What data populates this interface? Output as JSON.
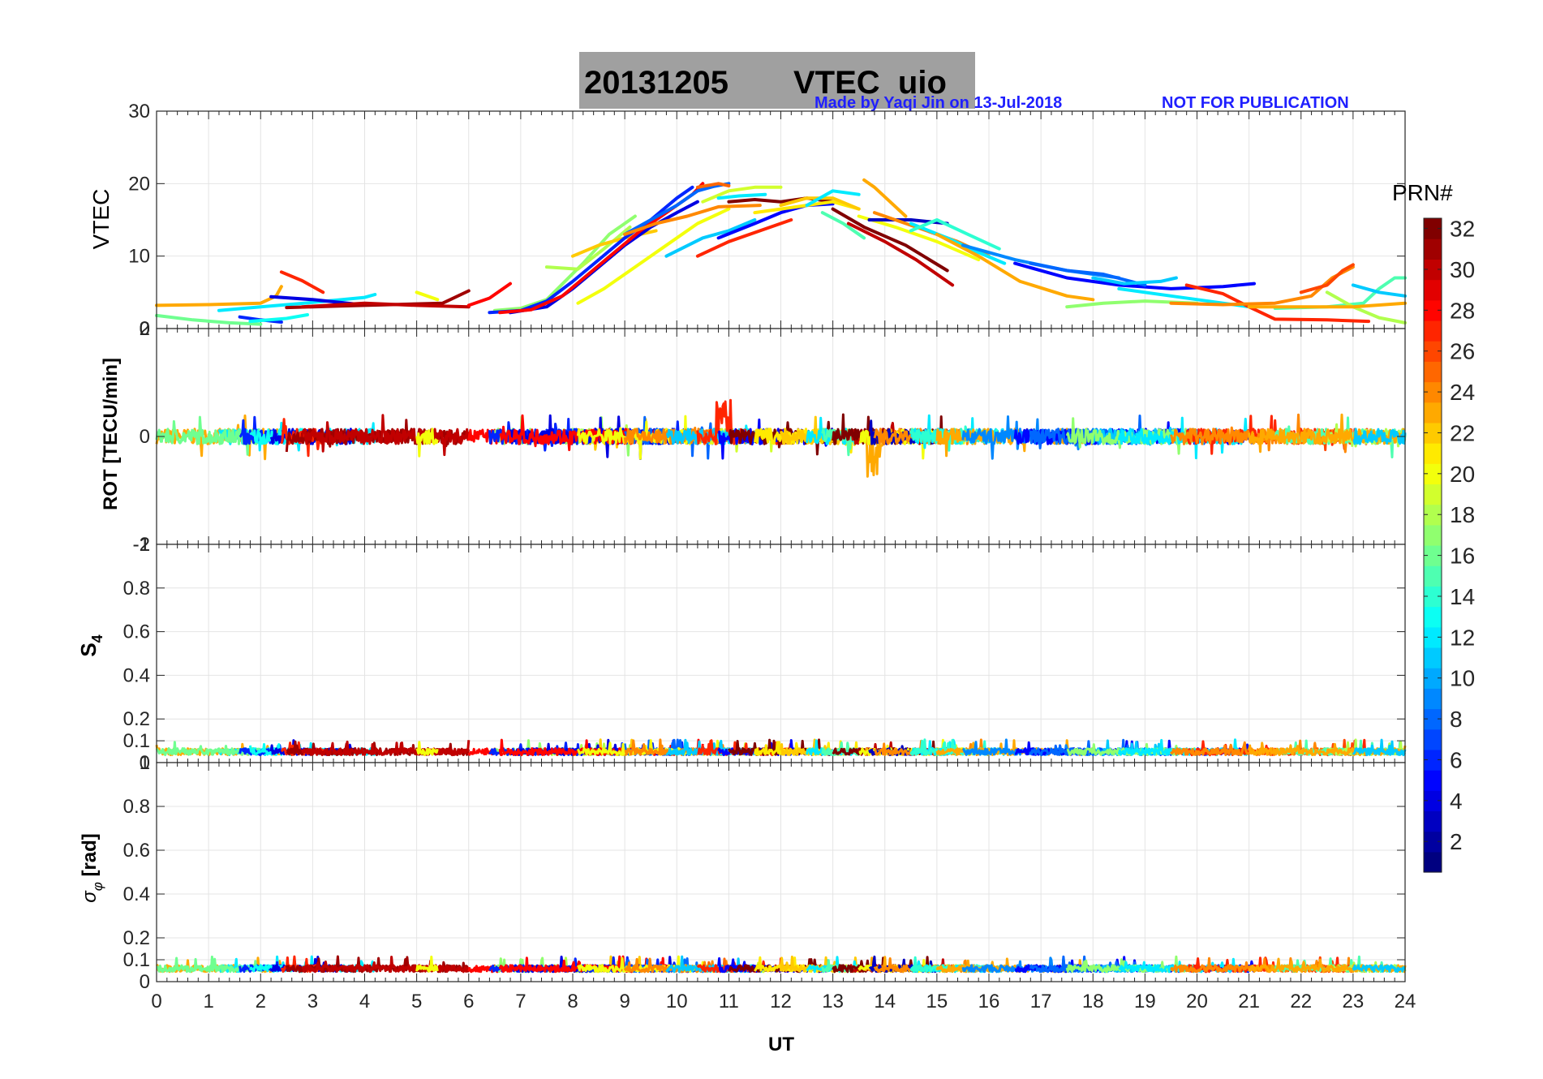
{
  "header": {
    "title_date": "20131205",
    "title_rest": "VTEC  uio",
    "credit": "Made by Yaqi Jin on 13-Jul-2018",
    "notice": "NOT FOR PUBLICATION",
    "credit_color": "#1f1fff",
    "title_bg": "#a0a0a0"
  },
  "chart_data": {
    "type": "line",
    "x_label": "UT",
    "x_range": [
      0,
      24
    ],
    "x_ticks": [
      "0",
      "1",
      "2",
      "3",
      "4",
      "5",
      "6",
      "7",
      "8",
      "9",
      "10",
      "11",
      "12",
      "13",
      "14",
      "15",
      "16",
      "17",
      "18",
      "19",
      "20",
      "21",
      "22",
      "23",
      "24"
    ],
    "panels": [
      {
        "id": "vtec",
        "ylabel": "VTEC",
        "ylim": [
          0,
          30
        ],
        "ytick_values": [
          0,
          10,
          20,
          30
        ],
        "ytick_labels": [
          "0",
          "10",
          "20",
          "30"
        ],
        "description": "Vertical TEC per PRN arc: ~2-7 TECU at night, daytime peak ~20 TECU near 10-11 UT"
      },
      {
        "id": "rot",
        "ylabel": "ROT [TECU/min]",
        "ylim": [
          -2,
          2
        ],
        "ytick_values": [
          -2,
          0,
          2
        ],
        "ytick_labels": [
          "-2",
          "0",
          "2"
        ],
        "bottom_overlap_label": "-1",
        "top_overlap_label": "0",
        "description": "Rate of TEC mostly within +/-0.3, spikes up to ~0.9 near 10.9 UT and ~-0.9 near 13.8 UT"
      },
      {
        "id": "s4",
        "ylabel": "S",
        "ylabel_sub": "4",
        "ylim": [
          0,
          1
        ],
        "ytick_values": [
          0,
          0.1,
          0.2,
          0.4,
          0.6,
          0.8,
          1
        ],
        "ytick_labels": [
          "0",
          "0.1",
          "0.2",
          "0.4",
          "0.6",
          "0.8",
          "1"
        ],
        "description": "Amplitude scintillation index ~0.03-0.08 all day"
      },
      {
        "id": "sigma",
        "ylabel": "σ",
        "ylabel_sub": "φ",
        "ylabel_unit": " [rad]",
        "ylim": [
          0,
          1
        ],
        "ytick_values": [
          0,
          0.1,
          0.2,
          0.4,
          0.6,
          0.8
        ],
        "ytick_labels": [
          "0",
          "0.1",
          "0.2",
          "0.4",
          "0.6",
          "0.8"
        ],
        "top_overlap_label": "1",
        "description": "Phase scintillation ~0.03-0.08 rad all day"
      }
    ],
    "vtec_series": [
      {
        "prn": 23,
        "x": [
          0,
          1,
          2,
          2.3,
          2.4
        ],
        "y": [
          3.2,
          3.3,
          3.5,
          4.5,
          5.8
        ]
      },
      {
        "prn": 12,
        "x": [
          1.2,
          2,
          3,
          4,
          4.2
        ],
        "y": [
          2.5,
          3,
          3.6,
          4.3,
          4.7
        ]
      },
      {
        "prn": 16,
        "x": [
          0,
          0.7,
          1.4,
          2
        ],
        "y": [
          1.8,
          1.2,
          0.8,
          0.6
        ]
      },
      {
        "prn": 6,
        "x": [
          1.6,
          2,
          2.4
        ],
        "y": [
          1.6,
          1.2,
          0.9
        ]
      },
      {
        "prn": 13,
        "x": [
          1.8,
          2.5,
          2.9
        ],
        "y": [
          1.0,
          1.4,
          1.9
        ]
      },
      {
        "prn": 4,
        "x": [
          2.2,
          3,
          3.8
        ],
        "y": [
          4.4,
          4,
          3.4
        ]
      },
      {
        "prn": 27,
        "x": [
          2.4,
          2.8,
          3.2
        ],
        "y": [
          7.8,
          6.6,
          5.0
        ]
      },
      {
        "prn": 31,
        "x": [
          2.5,
          3.5,
          4.5,
          5.5,
          6
        ],
        "y": [
          2.9,
          3.1,
          3.3,
          3.5,
          5.2
        ]
      },
      {
        "prn": 30,
        "x": [
          2.8,
          4,
          5,
          6
        ],
        "y": [
          3,
          3.5,
          3.2,
          3
        ]
      },
      {
        "prn": 20,
        "x": [
          5,
          5.4
        ],
        "y": [
          5,
          4
        ]
      },
      {
        "prn": 28,
        "x": [
          6,
          6.4,
          6.8
        ],
        "y": [
          3.2,
          4.2,
          6.2
        ]
      },
      {
        "prn": 17,
        "x": [
          6.5,
          7,
          7.5,
          8.2,
          8.7,
          9.2
        ],
        "y": [
          2.5,
          2.8,
          4,
          9,
          13,
          15.5
        ]
      },
      {
        "prn": 18,
        "x": [
          7.5,
          8.1,
          8.6,
          9.1
        ],
        "y": [
          8.5,
          8.2,
          11,
          14
        ]
      },
      {
        "prn": 22,
        "x": [
          8,
          8.5,
          9,
          9.6
        ],
        "y": [
          10,
          11.5,
          12.5,
          13.5
        ]
      },
      {
        "prn": 6,
        "x": [
          6.4,
          7,
          7.5,
          8,
          8.5,
          9,
          9.5,
          10,
          10.3
        ],
        "y": [
          2.2,
          2.5,
          3.8,
          6.5,
          9.5,
          12.5,
          15,
          18,
          19.5
        ]
      },
      {
        "prn": 4,
        "x": [
          6.8,
          7.5,
          8,
          8.5,
          9,
          9.5,
          10,
          10.4
        ],
        "y": [
          2.2,
          3,
          5.5,
          8.5,
          11.5,
          14,
          16,
          17.5
        ]
      },
      {
        "prn": 28,
        "x": [
          6.6,
          7.2,
          7.8,
          8.3,
          8.8,
          9.3,
          9.8,
          10.3,
          10.5
        ],
        "y": [
          2.2,
          2.6,
          4.5,
          7.5,
          10.5,
          13.5,
          16,
          18.5,
          20
        ]
      },
      {
        "prn": 8,
        "x": [
          9,
          9.5,
          10,
          10.4,
          10.7,
          11
        ],
        "y": [
          13,
          15,
          17,
          19,
          19.6,
          20
        ]
      },
      {
        "prn": 20,
        "x": [
          8.1,
          8.6,
          9.2,
          9.8,
          10.4,
          11
        ],
        "y": [
          3.5,
          5.5,
          8.5,
          11.5,
          14.5,
          16.5
        ]
      },
      {
        "prn": 24,
        "x": [
          9,
          9.6,
          10.2,
          10.8,
          11.6
        ],
        "y": [
          13,
          14.5,
          15.5,
          16.8,
          17
        ]
      },
      {
        "prn": 19,
        "x": [
          10.5,
          11,
          11.5,
          12
        ],
        "y": [
          17.5,
          19,
          19.5,
          19.5
        ]
      },
      {
        "prn": 25,
        "x": [
          10.4,
          10.8,
          11
        ],
        "y": [
          19.5,
          20,
          19.7
        ]
      },
      {
        "prn": 12,
        "x": [
          10.8,
          11.2,
          11.7
        ],
        "y": [
          18,
          18.3,
          18.5
        ]
      },
      {
        "prn": 11,
        "x": [
          9.8,
          10.5,
          11,
          11.5
        ],
        "y": [
          10,
          12.5,
          13.5,
          15
        ]
      },
      {
        "prn": 27,
        "x": [
          10.4,
          11,
          11.6,
          12.2
        ],
        "y": [
          10,
          12,
          13.5,
          15
        ]
      },
      {
        "prn": 5,
        "x": [
          10.8,
          11.5,
          12,
          12.5,
          13
        ],
        "y": [
          12.5,
          14.5,
          16,
          17,
          17.2
        ]
      },
      {
        "prn": 32,
        "x": [
          11,
          11.5,
          12,
          12.5,
          13
        ],
        "y": [
          17.5,
          17.8,
          17.5,
          18,
          17.5
        ]
      },
      {
        "prn": 21,
        "x": [
          11.5,
          12,
          12.5,
          13,
          13.5
        ],
        "y": [
          16,
          16.5,
          17,
          17.5,
          16.5
        ]
      },
      {
        "prn": 22,
        "x": [
          12,
          12.5,
          13,
          13.5
        ],
        "y": [
          17,
          18,
          18,
          16.5
        ]
      },
      {
        "prn": 12,
        "x": [
          12.5,
          13,
          13.5
        ],
        "y": [
          17,
          19,
          18.5
        ]
      },
      {
        "prn": 15,
        "x": [
          12.8,
          13.2,
          13.6
        ],
        "y": [
          16,
          14.5,
          12.5
        ]
      },
      {
        "prn": 30,
        "x": [
          13.3,
          14,
          14.6,
          15.3
        ],
        "y": [
          14.5,
          12,
          9.5,
          6
        ]
      },
      {
        "prn": 32,
        "x": [
          13,
          13.6,
          14.4,
          15.2
        ],
        "y": [
          16.5,
          14,
          11.5,
          8
        ]
      },
      {
        "prn": 23,
        "x": [
          13.6,
          13.8,
          14.1,
          14.4
        ],
        "y": [
          20.5,
          19.5,
          17.5,
          15.5
        ]
      },
      {
        "prn": 20,
        "x": [
          13.5,
          14.2,
          15,
          15.8
        ],
        "y": [
          15.5,
          14,
          12,
          9.5
        ]
      },
      {
        "prn": 3,
        "x": [
          13.7,
          14.5,
          15.2
        ],
        "y": [
          15,
          15,
          14.5
        ]
      },
      {
        "prn": 24,
        "x": [
          13.8,
          14.6,
          15.4,
          16
        ],
        "y": [
          16,
          14,
          12,
          10
        ]
      },
      {
        "prn": 12,
        "x": [
          14.5,
          15.2,
          15.8,
          16.3
        ],
        "y": [
          14.5,
          12.5,
          10.5,
          9
        ]
      },
      {
        "prn": 14,
        "x": [
          14.5,
          15,
          15.6,
          16.2
        ],
        "y": [
          13.5,
          15,
          13,
          11
        ]
      },
      {
        "prn": 23,
        "x": [
          15,
          15.8,
          16.6,
          17.5,
          18
        ],
        "y": [
          13,
          10,
          6.5,
          4.5,
          4
        ]
      },
      {
        "prn": 9,
        "x": [
          15.5,
          16.5,
          17.5,
          18.5
        ],
        "y": [
          11.5,
          9.5,
          8,
          7
        ]
      },
      {
        "prn": 5,
        "x": [
          16.5,
          17.5,
          18.5,
          19.5,
          20.5,
          21.1
        ],
        "y": [
          9,
          7,
          6,
          5.5,
          5.8,
          6.2
        ]
      },
      {
        "prn": 8,
        "x": [
          16.8,
          17.5,
          18.2,
          19
        ],
        "y": [
          9,
          8,
          7.5,
          6
        ]
      },
      {
        "prn": 11,
        "x": [
          18,
          18.6,
          19.3,
          19.6
        ],
        "y": [
          7,
          6.2,
          6.5,
          7
        ]
      },
      {
        "prn": 17,
        "x": [
          17.5,
          18.2,
          19,
          20
        ],
        "y": [
          3,
          3.5,
          3.8,
          3.5
        ]
      },
      {
        "prn": 12,
        "x": [
          18.5,
          19.5,
          20.5,
          21
        ],
        "y": [
          5.5,
          4.5,
          3.5,
          3
        ]
      },
      {
        "prn": 27,
        "x": [
          19.8,
          20.5,
          21,
          21.5,
          22.5,
          23.3
        ],
        "y": [
          6,
          4.8,
          3,
          1.3,
          1.2,
          1
        ]
      },
      {
        "prn": 24,
        "x": [
          19.5,
          20.5,
          21.5,
          22.2,
          22.6,
          23
        ],
        "y": [
          3.5,
          3.3,
          3.5,
          4.5,
          7,
          8.5
        ]
      },
      {
        "prn": 26,
        "x": [
          22,
          22.5,
          22.8,
          23
        ],
        "y": [
          5,
          6,
          8,
          8.8
        ]
      },
      {
        "prn": 15,
        "x": [
          21.5,
          22.5,
          23.2,
          23.5,
          23.8,
          24
        ],
        "y": [
          2.8,
          3,
          3.5,
          5.5,
          7,
          7
        ]
      },
      {
        "prn": 18,
        "x": [
          22.5,
          23,
          23.5,
          24
        ],
        "y": [
          5,
          3,
          1.5,
          0.8
        ]
      },
      {
        "prn": 23,
        "x": [
          21,
          22,
          23,
          24
        ],
        "y": [
          3,
          3,
          3,
          3.5
        ]
      },
      {
        "prn": 11,
        "x": [
          23,
          23.5,
          24
        ],
        "y": [
          6,
          5,
          4.5
        ]
      }
    ],
    "colorbar": {
      "label": "PRN#",
      "range": [
        1,
        32
      ],
      "tick_values": [
        2,
        4,
        6,
        8,
        10,
        12,
        14,
        16,
        18,
        20,
        22,
        24,
        26,
        28,
        30,
        32
      ],
      "tick_labels": [
        "2",
        "4",
        "6",
        "8",
        "10",
        "12",
        "14",
        "16",
        "18",
        "20",
        "22",
        "24",
        "26",
        "28",
        "30",
        "32"
      ],
      "colormap": "jet"
    }
  }
}
